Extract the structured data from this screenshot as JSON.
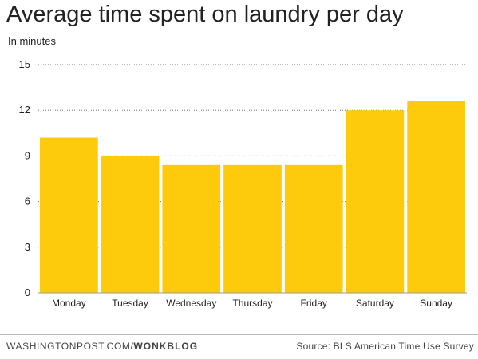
{
  "header": {
    "title": "Average time spent on laundry per day",
    "subtitle": "In minutes"
  },
  "footer": {
    "site": "WASHINGTONPOST.COM/",
    "section": "WONKBLOG",
    "source": "Source: BLS American Time Use Survey"
  },
  "colors": {
    "bar": "#FDCB0B",
    "grid": "#777777",
    "text": "#222222"
  },
  "chart_data": {
    "type": "bar",
    "title": "Average time spent on laundry per day",
    "subtitle": "In minutes",
    "categories": [
      "Monday",
      "Tuesday",
      "Wednesday",
      "Thursday",
      "Friday",
      "Saturday",
      "Sunday"
    ],
    "values": [
      10.2,
      9.0,
      8.4,
      8.4,
      8.4,
      12.0,
      12.6
    ],
    "ylim": [
      0,
      15
    ],
    "yticks": [
      0,
      3,
      6,
      9,
      12,
      15
    ],
    "grid": true,
    "legend": "none"
  }
}
